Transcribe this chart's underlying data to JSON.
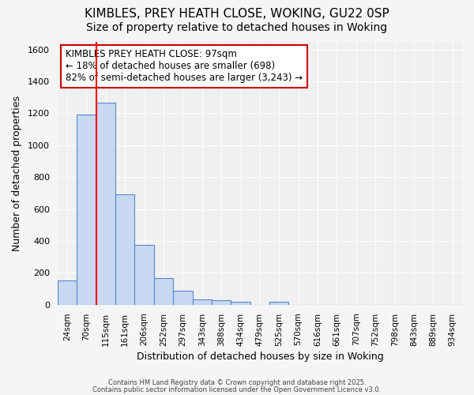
{
  "title1": "KIMBLES, PREY HEATH CLOSE, WOKING, GU22 0SP",
  "title2": "Size of property relative to detached houses in Woking",
  "xlabel": "Distribution of detached houses by size in Woking",
  "ylabel": "Number of detached properties",
  "categories": [
    "24sqm",
    "70sqm",
    "115sqm",
    "161sqm",
    "206sqm",
    "252sqm",
    "297sqm",
    "343sqm",
    "388sqm",
    "434sqm",
    "479sqm",
    "525sqm",
    "570sqm",
    "616sqm",
    "661sqm",
    "707sqm",
    "752sqm",
    "798sqm",
    "843sqm",
    "889sqm",
    "934sqm"
  ],
  "values": [
    150,
    1190,
    1265,
    690,
    375,
    165,
    90,
    35,
    30,
    20,
    0,
    20,
    0,
    0,
    0,
    0,
    0,
    0,
    0,
    0,
    0
  ],
  "bar_color": "#c8d8f0",
  "bar_edge_color": "#5588cc",
  "ylim": [
    0,
    1650
  ],
  "yticks": [
    0,
    200,
    400,
    600,
    800,
    1000,
    1200,
    1400,
    1600
  ],
  "red_line_x": 2.0,
  "annotation_text": "KIMBLES PREY HEATH CLOSE: 97sqm\n← 18% of detached houses are smaller (698)\n82% of semi-detached houses are larger (3,243) →",
  "annotation_box_color": "#ffffff",
  "annotation_box_edge_color": "#cc0000",
  "footer1": "Contains HM Land Registry data © Crown copyright and database right 2025.",
  "footer2": "Contains public sector information licensed under the Open Government Licence v3.0.",
  "bg_color": "#f5f5f5",
  "plot_bg_color": "#f0f0f0",
  "grid_color": "#ffffff",
  "title_fontsize": 11,
  "subtitle_fontsize": 10,
  "annot_fontsize": 8.5
}
